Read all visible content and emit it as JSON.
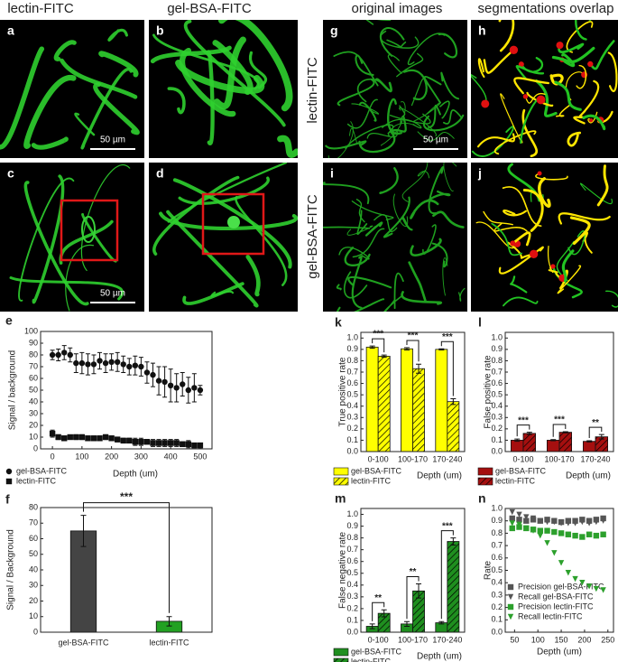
{
  "columns": [
    "lectin-FITC",
    "gel-BSA-FITC",
    "original images",
    "segmentations overlap"
  ],
  "row_labels": [
    "lectin-FITC",
    "gel-BSA-FITC"
  ],
  "panels": [
    {
      "letter": "a",
      "scale_bar": "50 µm"
    },
    {
      "letter": "b"
    },
    {
      "letter": "c",
      "scale_bar": "50 µm"
    },
    {
      "letter": "d"
    },
    {
      "letter": "g",
      "scale_bar": "50 µm"
    },
    {
      "letter": "h"
    },
    {
      "letter": "i"
    },
    {
      "letter": "j"
    }
  ],
  "chart_data": [
    {
      "type": "scatter",
      "letter": "e",
      "ylabel": "Signal / background",
      "xlabel": "Depth (um)",
      "x": [
        0,
        20,
        40,
        60,
        80,
        100,
        120,
        140,
        160,
        180,
        200,
        220,
        240,
        260,
        280,
        300,
        320,
        340,
        360,
        380,
        400,
        420,
        440,
        460,
        480,
        500
      ],
      "xlim": [
        -40,
        540
      ],
      "xticks": [
        0,
        100,
        200,
        300,
        400,
        500
      ],
      "ylim": [
        0,
        100
      ],
      "yticks": [
        0,
        10,
        20,
        30,
        40,
        50,
        60,
        70,
        80,
        90,
        100
      ],
      "legend": "below",
      "series": [
        {
          "name": "gel-BSA-FITC",
          "color": "#111111",
          "marker": "circle",
          "values": [
            80,
            80,
            82,
            80,
            73,
            73,
            72,
            72,
            75,
            73,
            74,
            74,
            72,
            70,
            71,
            70,
            65,
            63,
            58,
            57,
            54,
            52,
            55,
            50,
            52,
            50
          ],
          "errors": [
            4,
            5,
            6,
            6,
            8,
            9,
            9,
            8,
            7,
            8,
            7,
            8,
            7,
            7,
            8,
            8,
            9,
            10,
            12,
            13,
            14,
            12,
            10,
            11,
            12,
            4
          ]
        },
        {
          "name": "lectin-FITC",
          "color": "#111111",
          "marker": "square",
          "values": [
            13,
            10,
            9,
            10,
            10,
            10,
            9,
            9,
            9,
            10,
            9,
            8,
            7,
            7,
            6,
            6,
            6,
            5,
            5,
            5,
            5,
            5,
            4,
            4,
            3,
            3
          ],
          "errors": [
            3,
            2,
            2,
            1,
            2,
            2,
            2,
            2,
            2,
            2,
            2,
            2,
            2,
            2,
            3,
            3,
            2,
            3,
            3,
            3,
            3,
            3,
            2,
            3,
            2,
            2
          ]
        }
      ]
    },
    {
      "type": "bar",
      "letter": "f",
      "ylabel": "Signal / Background",
      "categories": [
        "gel-BSA-FITC",
        "lectin-FITC"
      ],
      "values": [
        65,
        7
      ],
      "errors": [
        10,
        3
      ],
      "colors": [
        "#444444",
        "#22a122"
      ],
      "ylim": [
        0,
        80
      ],
      "yticks": [
        0,
        10,
        20,
        30,
        40,
        50,
        60,
        70,
        80
      ],
      "significance": [
        "***"
      ]
    },
    {
      "type": "bar",
      "letter": "k",
      "ylabel": "True positive rate",
      "xlabel": "Depth (um)",
      "categories": [
        "0-100",
        "100-170",
        "170-240"
      ],
      "ylim": [
        0,
        1.05
      ],
      "yticks": [
        {
          "value": 0,
          "label": "0.0"
        },
        0.1,
        0.2,
        0.3,
        0.4,
        0.5,
        0.6,
        0.7,
        0.8,
        0.9,
        {
          "value": 1,
          "label": "1.0"
        }
      ],
      "legend": "below",
      "significance": [
        "***",
        "***",
        "***"
      ],
      "series": [
        {
          "name": "gel-BSA-FITC",
          "color": "#ffff00",
          "values": [
            0.92,
            0.905,
            0.9
          ],
          "errors": [
            0.01,
            0.01,
            0.005
          ]
        },
        {
          "name": "lectin-FITC",
          "color": "#ffff00",
          "hatch": true,
          "values": [
            0.84,
            0.73,
            0.44
          ],
          "errors": [
            0.01,
            0.04,
            0.025
          ]
        }
      ]
    },
    {
      "type": "bar",
      "letter": "l",
      "ylabel": "False positive rate",
      "xlabel": "Depth (um)",
      "categories": [
        "0-100",
        "100-170",
        "170-240"
      ],
      "ylim": [
        0,
        1.05
      ],
      "yticks": [
        {
          "value": 0,
          "label": "0.0"
        },
        0.1,
        0.2,
        0.3,
        0.4,
        0.5,
        0.6,
        0.7,
        0.8,
        0.9,
        {
          "value": 1,
          "label": "1.0"
        }
      ],
      "legend": "below",
      "significance": [
        "***",
        "***",
        "**"
      ],
      "series": [
        {
          "name": "gel-BSA-FITC",
          "color": "#a50f0f",
          "values": [
            0.1,
            0.1,
            0.09
          ],
          "errors": [
            0.01,
            0.005,
            0.005
          ]
        },
        {
          "name": "lectin-FITC",
          "color": "#a50f0f",
          "hatch": true,
          "values": [
            0.16,
            0.17,
            0.13
          ],
          "errors": [
            0.01,
            0.005,
            0.02
          ]
        }
      ]
    },
    {
      "type": "bar",
      "letter": "m",
      "ylabel": "False negative rate",
      "xlabel": "Depth (um)",
      "categories": [
        "0-100",
        "100-170",
        "170-240"
      ],
      "ylim": [
        0,
        1.05
      ],
      "yticks": [
        {
          "value": 0,
          "label": "0.0"
        },
        0.1,
        0.2,
        0.3,
        0.4,
        0.5,
        0.6,
        0.7,
        0.8,
        0.9,
        {
          "value": 1,
          "label": "1.0"
        }
      ],
      "legend": "below",
      "significance": [
        "**",
        "**",
        "***"
      ],
      "series": [
        {
          "name": "gel-BSA-FITC",
          "color": "#1f8f1f",
          "values": [
            0.05,
            0.07,
            0.08
          ],
          "errors": [
            0.02,
            0.02,
            0.01
          ]
        },
        {
          "name": "lectin-FITC",
          "color": "#1f8f1f",
          "hatch": true,
          "values": [
            0.16,
            0.35,
            0.77
          ],
          "errors": [
            0.03,
            0.06,
            0.03
          ]
        }
      ]
    },
    {
      "type": "scatter",
      "letter": "n",
      "ylabel": "Rate",
      "xlabel": "Depth (um)",
      "x": [
        45,
        60,
        75,
        90,
        105,
        120,
        135,
        150,
        165,
        180,
        195,
        210,
        225,
        240
      ],
      "xlim": [
        30,
        262
      ],
      "xticks": [
        50,
        100,
        150,
        200,
        250
      ],
      "ylim": [
        0,
        1.0
      ],
      "yticks": [
        {
          "value": 0,
          "label": "0.0"
        },
        0.1,
        0.2,
        0.3,
        0.4,
        0.5,
        0.6,
        0.7,
        0.8,
        0.9,
        {
          "value": 1,
          "label": "1.0"
        }
      ],
      "legend": "lower left",
      "series": [
        {
          "name": "Precision gel-BSA-FITC",
          "color": "#555555",
          "marker": "square",
          "values": [
            0.92,
            0.91,
            0.9,
            0.91,
            0.9,
            0.91,
            0.9,
            0.89,
            0.9,
            0.9,
            0.91,
            0.9,
            0.91,
            0.92
          ]
        },
        {
          "name": "Recall gel-BSA-FITC",
          "color": "#555555",
          "marker": "triangle-down",
          "values": [
            0.97,
            0.95,
            0.93,
            0.92,
            0.9,
            0.89,
            0.89,
            0.88,
            0.88,
            0.88,
            0.89,
            0.88,
            0.89,
            0.9
          ]
        },
        {
          "name": "Precision lectin-FITC",
          "color": "#2ca02c",
          "marker": "square",
          "values": [
            0.84,
            0.85,
            0.84,
            0.83,
            0.82,
            0.82,
            0.81,
            0.8,
            0.79,
            0.78,
            0.77,
            0.79,
            0.78,
            0.79
          ]
        },
        {
          "name": "Recall lectin-FITC",
          "color": "#2ca02c",
          "marker": "triangle-down",
          "values": [
            0.88,
            0.87,
            0.84,
            0.82,
            0.78,
            0.72,
            0.64,
            0.56,
            0.48,
            0.43,
            0.4,
            0.37,
            0.35,
            0.34
          ]
        }
      ]
    }
  ]
}
